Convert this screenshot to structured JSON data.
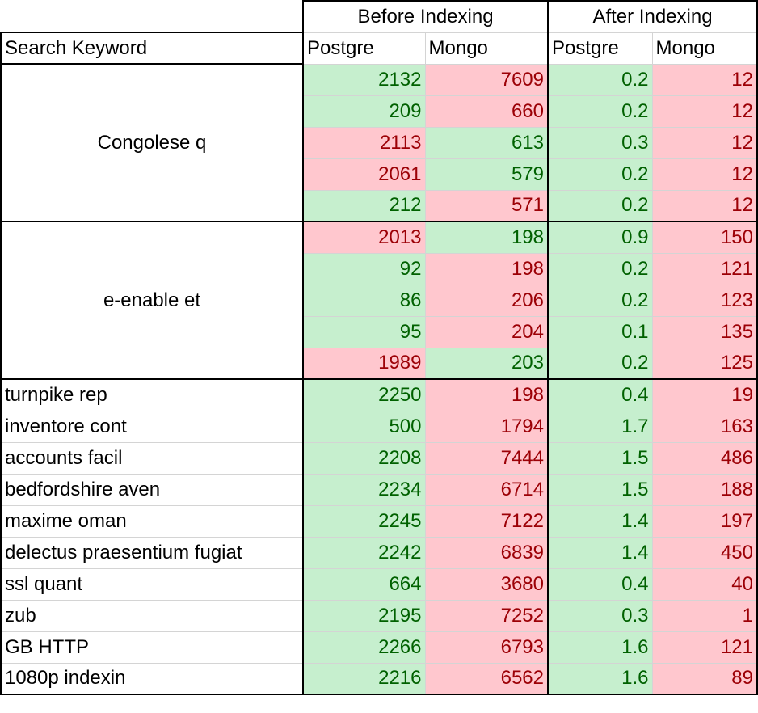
{
  "headers": {
    "keyword": "Search Keyword",
    "before": "Before Indexing",
    "after": "After Indexing",
    "cols": [
      "Postgre",
      "Mongo",
      "Postgre",
      "Mongo"
    ]
  },
  "colors": {
    "good_bg": "#c6efce",
    "good_fg": "#006100",
    "bad_bg": "#ffc7ce",
    "bad_fg": "#9c0006"
  },
  "groups": [
    {
      "keyword": "Congolese q",
      "rows": [
        {
          "bp": "2132",
          "bm": "7609",
          "ap": "0.2",
          "am": "12",
          "s": [
            "g",
            "b",
            "g",
            "b"
          ]
        },
        {
          "bp": "209",
          "bm": "660",
          "ap": "0.2",
          "am": "12",
          "s": [
            "g",
            "b",
            "g",
            "b"
          ]
        },
        {
          "bp": "2113",
          "bm": "613",
          "ap": "0.3",
          "am": "12",
          "s": [
            "b",
            "g",
            "g",
            "b"
          ]
        },
        {
          "bp": "2061",
          "bm": "579",
          "ap": "0.2",
          "am": "12",
          "s": [
            "b",
            "g",
            "g",
            "b"
          ]
        },
        {
          "bp": "212",
          "bm": "571",
          "ap": "0.2",
          "am": "12",
          "s": [
            "g",
            "b",
            "g",
            "b"
          ]
        }
      ]
    },
    {
      "keyword": "e-enable et",
      "rows": [
        {
          "bp": "2013",
          "bm": "198",
          "ap": "0.9",
          "am": "150",
          "s": [
            "b",
            "g",
            "g",
            "b"
          ]
        },
        {
          "bp": "92",
          "bm": "198",
          "ap": "0.2",
          "am": "121",
          "s": [
            "g",
            "b",
            "g",
            "b"
          ]
        },
        {
          "bp": "86",
          "bm": "206",
          "ap": "0.2",
          "am": "123",
          "s": [
            "g",
            "b",
            "g",
            "b"
          ]
        },
        {
          "bp": "95",
          "bm": "204",
          "ap": "0.1",
          "am": "135",
          "s": [
            "g",
            "b",
            "g",
            "b"
          ]
        },
        {
          "bp": "1989",
          "bm": "203",
          "ap": "0.2",
          "am": "125",
          "s": [
            "b",
            "g",
            "g",
            "b"
          ]
        }
      ]
    }
  ],
  "rows": [
    {
      "keyword": "turnpike rep",
      "bp": "2250",
      "bm": "198",
      "ap": "0.4",
      "am": "19"
    },
    {
      "keyword": "inventore cont",
      "bp": "500",
      "bm": "1794",
      "ap": "1.7",
      "am": "163"
    },
    {
      "keyword": "accounts facil",
      "bp": "2208",
      "bm": "7444",
      "ap": "1.5",
      "am": "486"
    },
    {
      "keyword": "bedfordshire aven",
      "bp": "2234",
      "bm": "6714",
      "ap": "1.5",
      "am": "188"
    },
    {
      "keyword": "maxime oman",
      "bp": "2245",
      "bm": "7122",
      "ap": "1.4",
      "am": "197"
    },
    {
      "keyword": "delectus praesentium fugiat",
      "bp": "2242",
      "bm": "6839",
      "ap": "1.4",
      "am": "450"
    },
    {
      "keyword": "ssl quant",
      "bp": "664",
      "bm": "3680",
      "ap": "0.4",
      "am": "40"
    },
    {
      "keyword": "zub",
      "bp": "2195",
      "bm": "7252",
      "ap": "0.3",
      "am": "1"
    },
    {
      "keyword": "GB HTTP",
      "bp": "2266",
      "bm": "6793",
      "ap": "1.6",
      "am": "121"
    },
    {
      "keyword": "1080p indexin",
      "bp": "2216",
      "bm": "6562",
      "ap": "1.6",
      "am": "89"
    }
  ]
}
